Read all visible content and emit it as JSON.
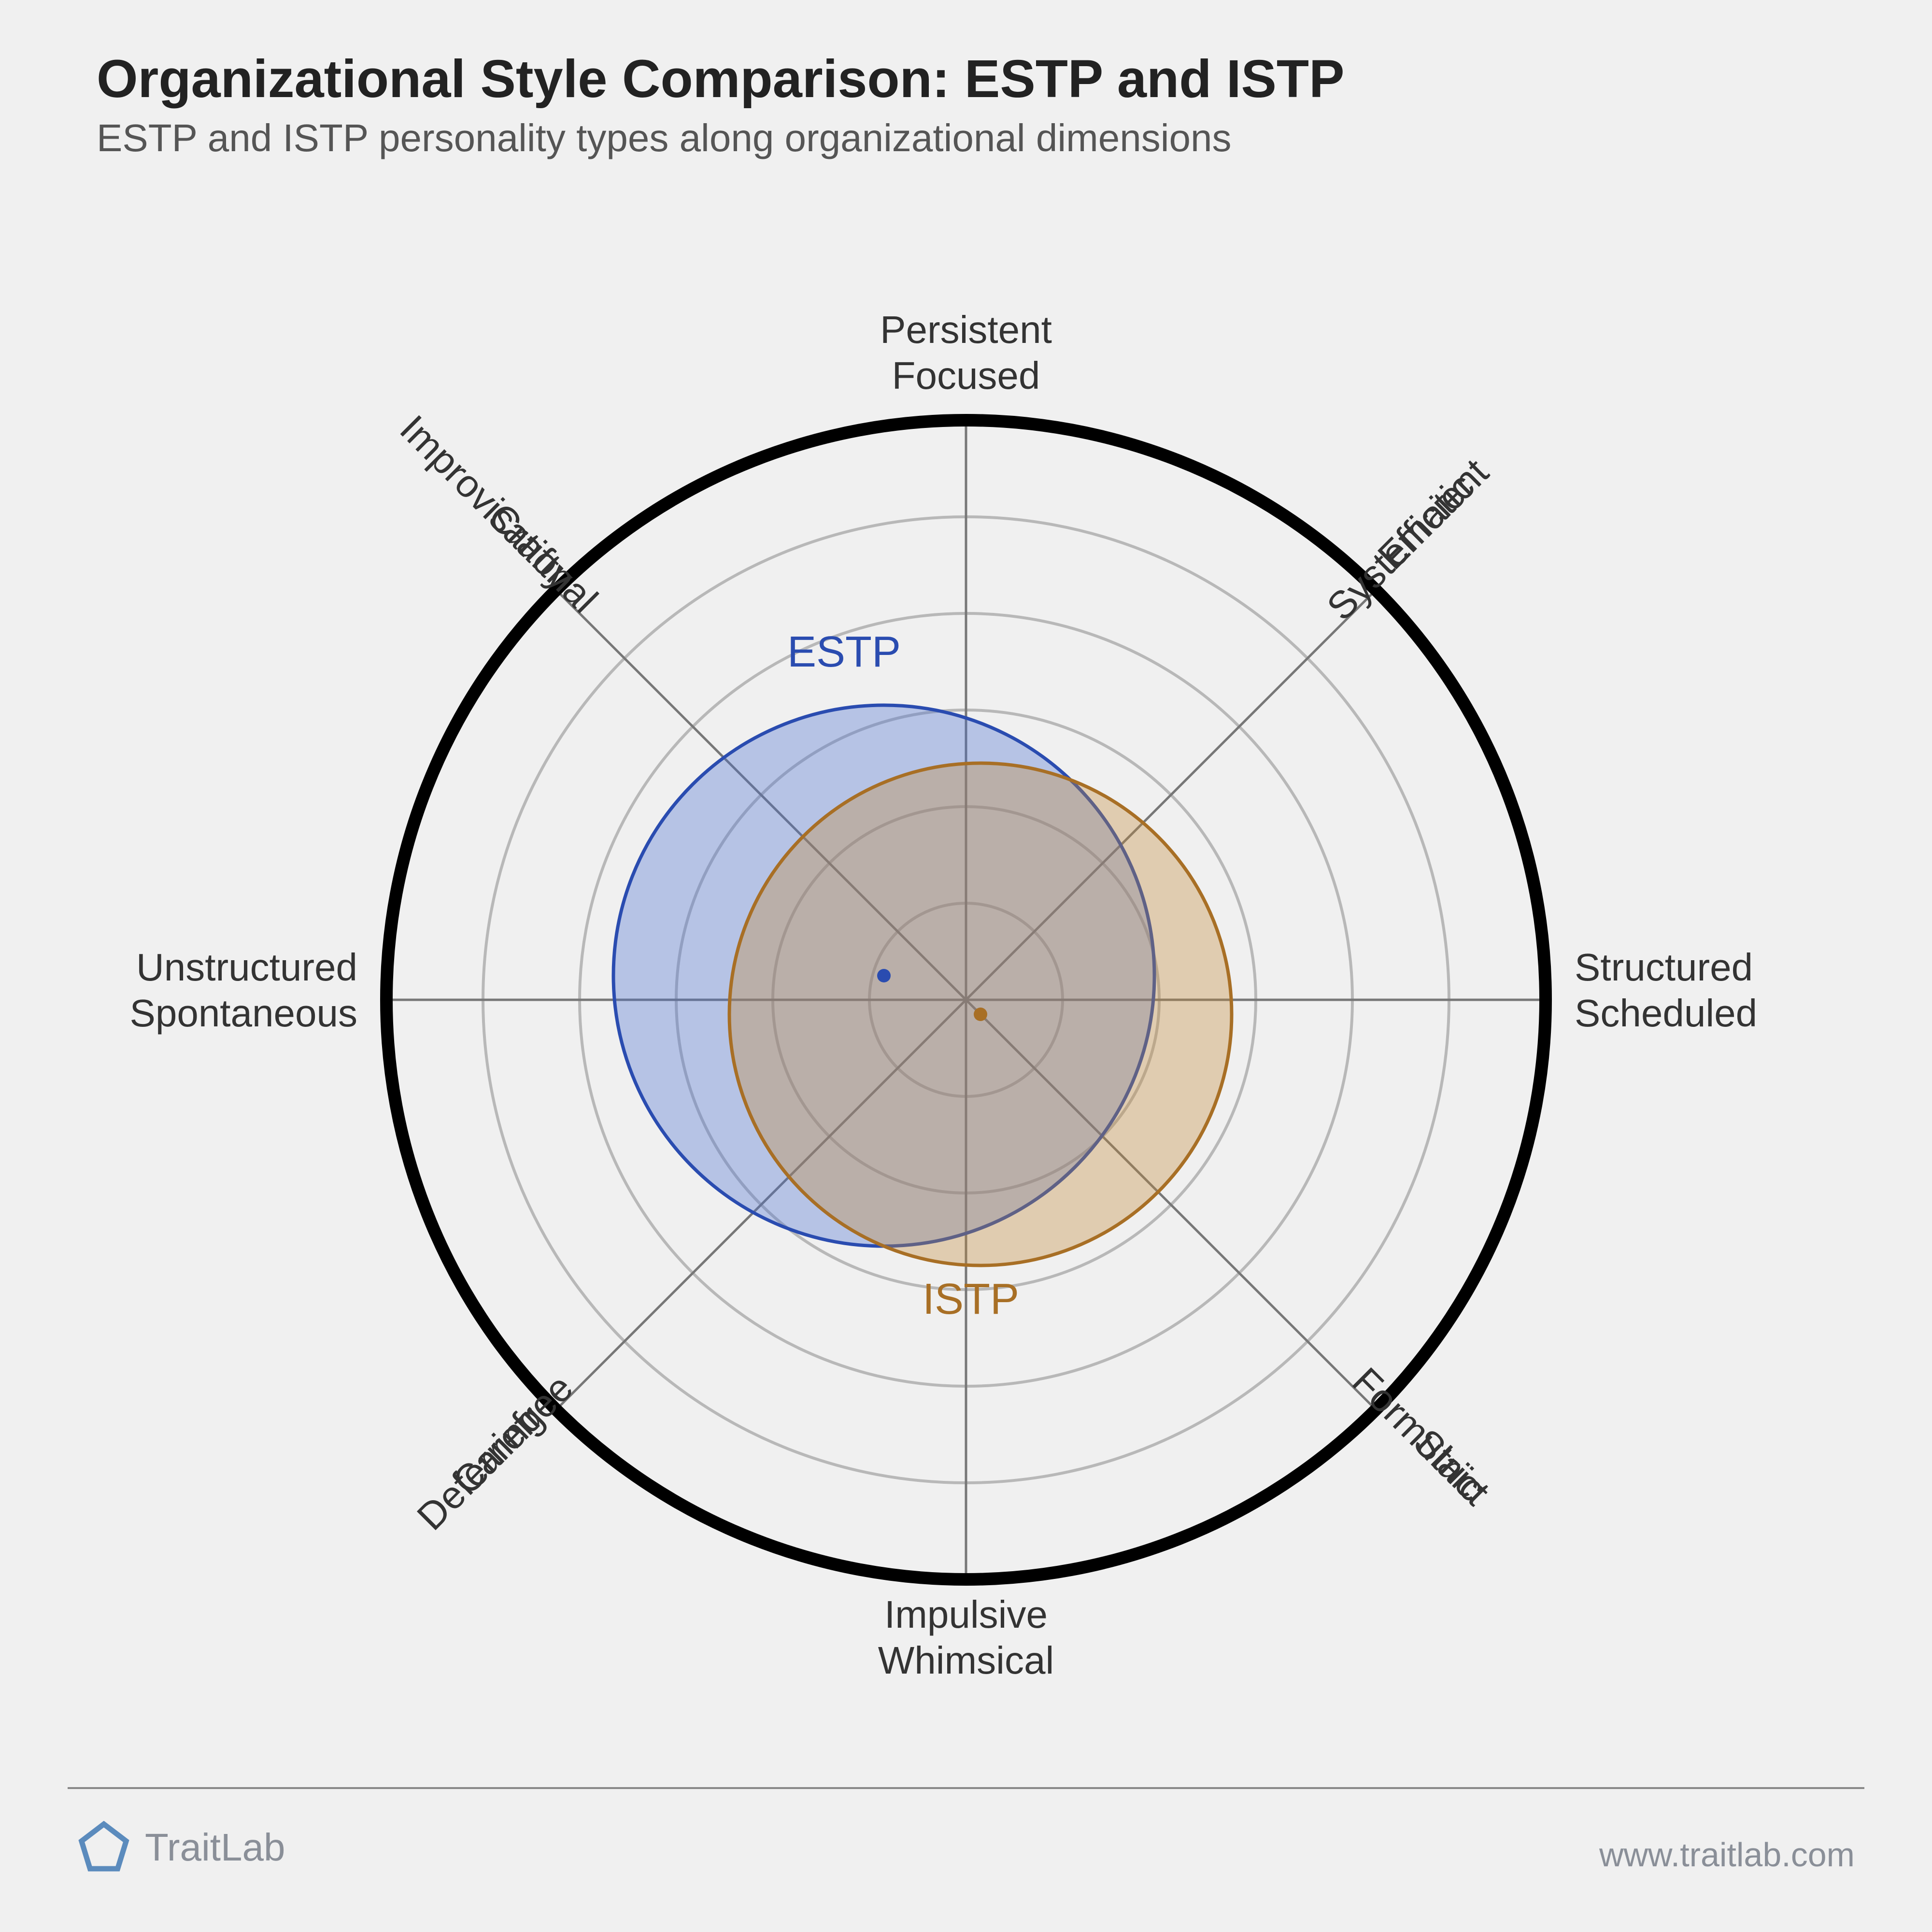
{
  "title": "Organizational Style Comparison: ESTP and ISTP",
  "subtitle": "ESTP and ISTP personality types along organizational dimensions",
  "chart": {
    "type": "circumplex",
    "background_color": "#f0f0f0",
    "outer_radius": 1200,
    "outer_stroke_color": "#000000",
    "outer_stroke_width": 26,
    "grid_rings": 6,
    "grid_color": "#b8b8b8",
    "grid_stroke_width": 6,
    "axis_color": "#777777",
    "axis_stroke_width": 5,
    "axes": [
      {
        "angle_deg": 0,
        "label_line1": "Structured",
        "label_line2": "Scheduled"
      },
      {
        "angle_deg": 45,
        "label_line1": "Efficient",
        "label_line2": "Systematic"
      },
      {
        "angle_deg": 90,
        "label_line1": "Persistent",
        "label_line2": "Focused"
      },
      {
        "angle_deg": 135,
        "label_line1": "Improvisational",
        "label_line2": "Crafty"
      },
      {
        "angle_deg": 180,
        "label_line1": "Unstructured",
        "label_line2": "Spontaneous"
      },
      {
        "angle_deg": 225,
        "label_line1": "Deferring",
        "label_line2": "Carefree"
      },
      {
        "angle_deg": 270,
        "label_line1": "Impulsive",
        "label_line2": "Whimsical"
      },
      {
        "angle_deg": 315,
        "label_line1": "Strict",
        "label_line2": "Formulaic"
      }
    ],
    "series": [
      {
        "name": "ESTP",
        "label": "ESTP",
        "center_x": -170,
        "center_y": 50,
        "radius": 560,
        "fill_color": "#4a6fd1",
        "fill_opacity": 0.35,
        "stroke_color": "#2a4cb0",
        "stroke_width": 7,
        "label_color": "#2a4cb0",
        "label_dx": -200,
        "label_dy": -640,
        "dot_r": 14
      },
      {
        "name": "ISTP",
        "label": "ISTP",
        "center_x": 30,
        "center_y": -30,
        "radius": 520,
        "fill_color": "#c28a3a",
        "fill_opacity": 0.35,
        "stroke_color": "#a86f25",
        "stroke_width": 7,
        "label_color": "#a86f25",
        "label_dx": -120,
        "label_dy": 620,
        "dot_r": 14
      }
    ],
    "label_fontsize": 80,
    "label_color": "#333333",
    "series_label_fontsize": 90
  },
  "footer": {
    "brand": "TraitLab",
    "brand_color": "#8a8f98",
    "logo_color": "#5b8bbd",
    "url": "www.traitlab.com",
    "rule_color": "#888888"
  }
}
